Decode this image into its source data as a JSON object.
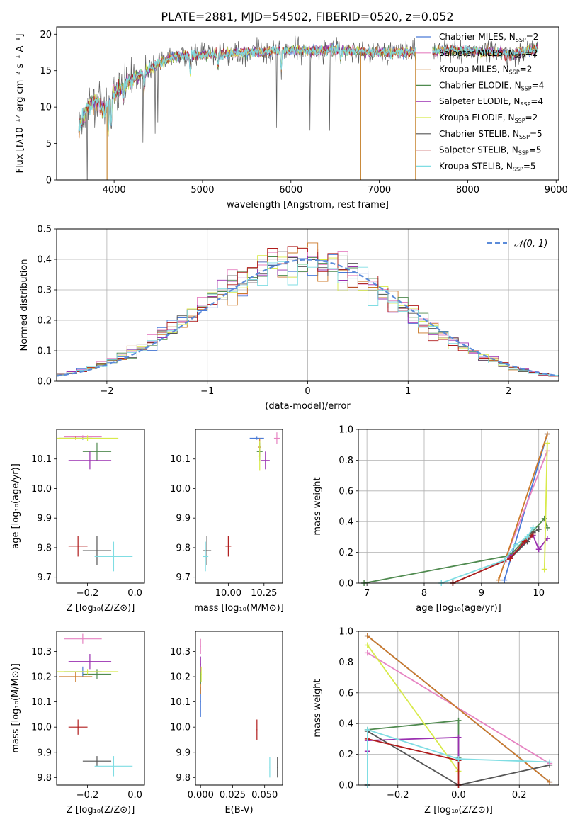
{
  "figure_title": "PLATE=2881, MJD=54502, FIBERID=0520, z=0.052",
  "colors": {
    "Chabrier MILES": "#4a7bd8",
    "Salpeter MILES": "#e683c2",
    "Kroupa MILES": "#cc7a2a",
    "Chabrier ELODIE": "#4f8a4f",
    "Salpeter ELODIE": "#9a2fb0",
    "Kroupa ELODIE": "#d8ea4a",
    "Chabrier STELIB": "#555555",
    "Salpeter STELIB": "#b01c1c",
    "Kroupa STELIB": "#7fdde3",
    "normal": "#5b8bd9"
  },
  "legend": [
    {
      "name": "Chabrier MILES",
      "label": "Chabrier MILES, N",
      "sub": "SSP",
      "tail": "=2"
    },
    {
      "name": "Salpeter MILES",
      "label": "Salpeter MILES, N",
      "sub": "SSP",
      "tail": "=2"
    },
    {
      "name": "Kroupa MILES",
      "label": "Kroupa MILES, N",
      "sub": "SSP",
      "tail": "=2"
    },
    {
      "name": "Chabrier ELODIE",
      "label": "Chabrier ELODIE, N",
      "sub": "SSP",
      "tail": "=4"
    },
    {
      "name": "Salpeter ELODIE",
      "label": "Salpeter ELODIE, N",
      "sub": "SSP",
      "tail": "=4"
    },
    {
      "name": "Kroupa ELODIE",
      "label": "Kroupa ELODIE, N",
      "sub": "SSP",
      "tail": "=2"
    },
    {
      "name": "Chabrier STELIB",
      "label": "Chabrier STELIB, N",
      "sub": "SSP",
      "tail": "=5"
    },
    {
      "name": "Salpeter STELIB",
      "label": "Salpeter STELIB, N",
      "sub": "SSP",
      "tail": "=5"
    },
    {
      "name": "Kroupa STELIB",
      "label": "Kroupa STELIB, N",
      "sub": "SSP",
      "tail": "=5"
    }
  ],
  "chart_data": [
    {
      "id": "spectrum",
      "type": "line",
      "xlabel": "wavelength [Angstrom, rest frame]",
      "ylabel": "Flux [fλ10⁻¹⁷ erg cm⁻² s⁻¹ A⁻¹]",
      "xlim": [
        3350,
        9030
      ],
      "ylim": [
        0,
        21
      ],
      "xticks": [
        4000,
        5000,
        6000,
        7000,
        8000,
        9000
      ],
      "yticks": [
        0,
        5,
        10,
        15,
        20
      ],
      "continuum": [
        [
          3600,
          7
        ],
        [
          3700,
          10
        ],
        [
          3800,
          11
        ],
        [
          3900,
          9.5
        ],
        [
          4000,
          12
        ],
        [
          4100,
          13
        ],
        [
          4300,
          14.5
        ],
        [
          4500,
          16
        ],
        [
          4700,
          17
        ],
        [
          5000,
          17.2
        ],
        [
          5200,
          17.3
        ],
        [
          5500,
          17.5
        ],
        [
          6000,
          17.8
        ],
        [
          6500,
          17.8
        ],
        [
          7000,
          17.5
        ],
        [
          7400,
          17.5
        ],
        [
          7800,
          17.8
        ],
        [
          8200,
          17.6
        ],
        [
          8500,
          17.3
        ],
        [
          8800,
          18
        ]
      ],
      "gaps": [
        [
          7410,
          7600
        ]
      ]
    },
    {
      "id": "residuals",
      "type": "line",
      "xlabel": "(data-model)/error",
      "ylabel": "Normed distribution",
      "xlim": [
        -2.5,
        2.5
      ],
      "ylim": [
        0,
        0.5
      ],
      "xticks": [
        -2,
        -1,
        0,
        1,
        2
      ],
      "yticks": [
        0.0,
        0.1,
        0.2,
        0.3,
        0.4,
        0.5
      ],
      "grid": true,
      "legend": "𝒩(0, 1)",
      "bin_width": 0.1
    },
    {
      "id": "age-vs-Z",
      "type": "scatter",
      "xlabel": "Z [log₁₀(Z/Z⊙)]",
      "ylabel": "age  [log₁₀(age/yr)]",
      "xlim": [
        -0.33,
        0.04
      ],
      "ylim": [
        9.68,
        10.2
      ],
      "xticks": [
        -0.2,
        0.0
      ],
      "yticks": [
        9.7,
        9.8,
        9.9,
        10.0,
        10.1
      ],
      "points": [
        {
          "series": "Chabrier MILES",
          "x": -0.22,
          "y": 10.17,
          "xerr": 0.08,
          "yerr": 0.005
        },
        {
          "series": "Salpeter MILES",
          "x": -0.22,
          "y": 10.175,
          "xerr": 0.08,
          "yerr": 0.005
        },
        {
          "series": "Kroupa MILES",
          "x": -0.25,
          "y": 10.17,
          "xerr": 0.07,
          "yerr": 0.005
        },
        {
          "series": "Chabrier ELODIE",
          "x": -0.16,
          "y": 10.125,
          "xerr": 0.06,
          "yerr": 0.03
        },
        {
          "series": "Salpeter ELODIE",
          "x": -0.19,
          "y": 10.095,
          "xerr": 0.09,
          "yerr": 0.03
        },
        {
          "series": "Kroupa ELODIE",
          "x": -0.2,
          "y": 10.17,
          "xerr": 0.13,
          "yerr": 0.01
        },
        {
          "series": "Chabrier STELIB",
          "x": -0.16,
          "y": 9.79,
          "xerr": 0.06,
          "yerr": 0.05
        },
        {
          "series": "Salpeter STELIB",
          "x": -0.24,
          "y": 9.805,
          "xerr": 0.04,
          "yerr": 0.035
        },
        {
          "series": "Kroupa STELIB",
          "x": -0.09,
          "y": 9.77,
          "xerr": 0.08,
          "yerr": 0.05
        }
      ]
    },
    {
      "id": "age-vs-mass",
      "type": "scatter",
      "xlabel": "mass [log₁₀(M/M⊙)]",
      "ylabel": "",
      "xlim": [
        9.77,
        10.38
      ],
      "ylim": [
        9.68,
        10.2
      ],
      "xticks": [
        10.0,
        10.25
      ],
      "yticks": [
        9.7,
        9.8,
        9.9,
        10.0,
        10.1
      ],
      "points": [
        {
          "series": "Chabrier MILES",
          "x": 10.2,
          "y": 10.17,
          "xerr": 0.05,
          "yerr": 0.005
        },
        {
          "series": "Salpeter MILES",
          "x": 10.34,
          "y": 10.17,
          "xerr": 0.02,
          "yerr": 0.02
        },
        {
          "series": "Kroupa MILES",
          "x": 10.22,
          "y": 10.14,
          "xerr": 0.01,
          "yerr": 0.03
        },
        {
          "series": "Chabrier ELODIE",
          "x": 10.22,
          "y": 10.125,
          "xerr": 0.02,
          "yerr": 0.03
        },
        {
          "series": "Salpeter ELODIE",
          "x": 10.26,
          "y": 10.095,
          "xerr": 0.03,
          "yerr": 0.03
        },
        {
          "series": "Kroupa ELODIE",
          "x": 10.22,
          "y": 10.11,
          "xerr": 0.01,
          "yerr": 0.05
        },
        {
          "series": "Chabrier STELIB",
          "x": 9.85,
          "y": 9.79,
          "xerr": 0.03,
          "yerr": 0.05
        },
        {
          "series": "Salpeter STELIB",
          "x": 10.0,
          "y": 9.805,
          "xerr": 0.02,
          "yerr": 0.035
        },
        {
          "series": "Kroupa STELIB",
          "x": 9.84,
          "y": 9.77,
          "xerr": 0.02,
          "yerr": 0.05
        }
      ]
    },
    {
      "id": "weight-vs-age",
      "type": "line",
      "xlabel": "age  [log₁₀(age/yr)]",
      "ylabel": "mass weight",
      "xlim": [
        6.85,
        10.35
      ],
      "ylim": [
        0,
        1
      ],
      "xticks": [
        7,
        8,
        9,
        10
      ],
      "yticks": [
        0.0,
        0.2,
        0.4,
        0.6,
        0.8,
        1.0
      ],
      "grid": true,
      "series": [
        {
          "name": "Chabrier MILES",
          "x": [
            9.4,
            10.15
          ],
          "y": [
            0.02,
            0.97
          ]
        },
        {
          "name": "Salpeter MILES",
          "x": [
            9.4,
            10.15
          ],
          "y": [
            0.14,
            0.86
          ]
        },
        {
          "name": "Kroupa MILES",
          "x": [
            9.3,
            10.15
          ],
          "y": [
            0.02,
            0.97
          ]
        },
        {
          "name": "Chabrier ELODIE",
          "x": [
            6.95,
            9.5,
            10.1,
            10.15
          ],
          "y": [
            0.0,
            0.18,
            0.42,
            0.36
          ]
        },
        {
          "name": "Salpeter ELODIE",
          "x": [
            9.5,
            9.9,
            10.0,
            10.15
          ],
          "y": [
            0.17,
            0.31,
            0.22,
            0.29
          ]
        },
        {
          "name": "Kroupa ELODIE",
          "x": [
            10.1,
            10.15
          ],
          "y": [
            0.09,
            0.91
          ]
        },
        {
          "name": "Chabrier STELIB",
          "x": [
            8.5,
            9.5,
            9.8,
            9.9,
            10.0
          ],
          "y": [
            0.0,
            0.16,
            0.27,
            0.33,
            0.35
          ]
        },
        {
          "name": "Salpeter STELIB",
          "x": [
            8.5,
            9.5,
            9.75,
            9.85,
            9.9
          ],
          "y": [
            0.0,
            0.16,
            0.27,
            0.3,
            0.32
          ]
        },
        {
          "name": "Kroupa STELIB",
          "x": [
            8.3,
            9.4,
            9.6,
            9.8,
            9.9
          ],
          "y": [
            0.0,
            0.15,
            0.25,
            0.3,
            0.36
          ]
        }
      ]
    },
    {
      "id": "mass-vs-Z",
      "type": "scatter",
      "xlabel": "Z [log₁₀(Z/Z⊙)]",
      "ylabel": "mass [log₁₀(M/M⊙)]",
      "xlim": [
        -0.33,
        0.04
      ],
      "ylim": [
        9.77,
        10.38
      ],
      "xticks": [
        -0.2,
        0.0
      ],
      "yticks": [
        9.8,
        9.9,
        10.0,
        10.1,
        10.2,
        10.3
      ],
      "points": [
        {
          "series": "Chabrier MILES",
          "x": -0.22,
          "y": 10.22,
          "xerr": 0.08,
          "yerr": 0.02
        },
        {
          "series": "Salpeter MILES",
          "x": -0.22,
          "y": 10.35,
          "xerr": 0.08,
          "yerr": 0.02
        },
        {
          "series": "Kroupa MILES",
          "x": -0.25,
          "y": 10.2,
          "xerr": 0.07,
          "yerr": 0.02
        },
        {
          "series": "Chabrier ELODIE",
          "x": -0.16,
          "y": 10.21,
          "xerr": 0.06,
          "yerr": 0.02
        },
        {
          "series": "Salpeter ELODIE",
          "x": -0.19,
          "y": 10.26,
          "xerr": 0.09,
          "yerr": 0.03
        },
        {
          "series": "Kroupa ELODIE",
          "x": -0.2,
          "y": 10.22,
          "xerr": 0.13,
          "yerr": 0.01
        },
        {
          "series": "Chabrier STELIB",
          "x": -0.16,
          "y": 9.865,
          "xerr": 0.06,
          "yerr": 0.02
        },
        {
          "series": "Salpeter STELIB",
          "x": -0.24,
          "y": 10.0,
          "xerr": 0.04,
          "yerr": 0.03
        },
        {
          "series": "Kroupa STELIB",
          "x": -0.09,
          "y": 9.845,
          "xerr": 0.08,
          "yerr": 0.04
        }
      ]
    },
    {
      "id": "mass-vs-ebv",
      "type": "scatter",
      "xlabel": "E(B-V)",
      "ylabel": "",
      "xlim": [
        -0.004,
        0.064
      ],
      "ylim": [
        9.77,
        10.38
      ],
      "xticks": [
        0.0,
        0.025,
        0.05
      ],
      "yticks": [
        9.8,
        9.9,
        10.0,
        10.1,
        10.2,
        10.3
      ],
      "points": [
        {
          "series": "Chabrier MILES",
          "x": 0.0,
          "y": 10.1,
          "xerr": 0.0003,
          "yerr": 0.06
        },
        {
          "series": "Salpeter MILES",
          "x": 0.0,
          "y": 10.32,
          "xerr": 0.0003,
          "yerr": 0.03
        },
        {
          "series": "Kroupa MILES",
          "x": 0.0,
          "y": 10.17,
          "xerr": 0.0003,
          "yerr": 0.04
        },
        {
          "series": "Chabrier ELODIE",
          "x": 0.0,
          "y": 10.2,
          "xerr": 0.0003,
          "yerr": 0.03
        },
        {
          "series": "Salpeter ELODIE",
          "x": 0.0,
          "y": 10.25,
          "xerr": 0.0003,
          "yerr": 0.03
        },
        {
          "series": "Kroupa ELODIE",
          "x": 0.0005,
          "y": 10.21,
          "xerr": 0.0003,
          "yerr": 0.03
        },
        {
          "series": "Chabrier STELIB",
          "x": 0.06,
          "y": 9.84,
          "xerr": 0.0003,
          "yerr": 0.04
        },
        {
          "series": "Salpeter STELIB",
          "x": 0.044,
          "y": 9.99,
          "xerr": 0.0003,
          "yerr": 0.04
        },
        {
          "series": "Kroupa STELIB",
          "x": 0.054,
          "y": 9.84,
          "xerr": 0.0003,
          "yerr": 0.04
        }
      ]
    },
    {
      "id": "weight-vs-Z",
      "type": "line",
      "xlabel": "Z [log₁₀(Z/Z⊙)]",
      "ylabel": "mass weight",
      "xlim": [
        -0.33,
        0.33
      ],
      "ylim": [
        0,
        1
      ],
      "xticks": [
        -0.2,
        0.0,
        0.2
      ],
      "yticks": [
        0.0,
        0.2,
        0.4,
        0.6,
        0.8,
        1.0
      ],
      "grid": true,
      "series": [
        {
          "name": "Chabrier MILES",
          "x": [
            -0.3,
            0.3
          ],
          "y": [
            0.97,
            0.02
          ]
        },
        {
          "name": "Salpeter MILES",
          "x": [
            -0.3,
            0.3
          ],
          "y": [
            0.86,
            0.14
          ]
        },
        {
          "name": "Kroupa MILES",
          "x": [
            -0.3,
            0.3
          ],
          "y": [
            0.97,
            0.02
          ]
        },
        {
          "name": "Chabrier ELODIE",
          "x": [
            -0.3,
            -0.3,
            0.0,
            0.0
          ],
          "y": [
            0.0,
            0.36,
            0.42,
            0.18
          ]
        },
        {
          "name": "Salpeter ELODIE",
          "x": [
            -0.3,
            -0.3,
            0.0,
            0.0
          ],
          "y": [
            0.22,
            0.29,
            0.31,
            0.17
          ]
        },
        {
          "name": "Kroupa ELODIE",
          "x": [
            -0.3,
            0.0
          ],
          "y": [
            0.91,
            0.09
          ]
        },
        {
          "name": "Chabrier STELIB",
          "x": [
            -0.3,
            -0.3,
            0.0,
            0.3
          ],
          "y": [
            0.0,
            0.35,
            0.0,
            0.13
          ]
        },
        {
          "name": "Salpeter STELIB",
          "x": [
            -0.3,
            -0.3,
            0.0,
            0.0
          ],
          "y": [
            0.0,
            0.3,
            0.16,
            0.0
          ]
        },
        {
          "name": "Kroupa STELIB",
          "x": [
            -0.3,
            -0.3,
            0.0,
            0.3
          ],
          "y": [
            0.0,
            0.36,
            0.17,
            0.15
          ]
        }
      ]
    }
  ]
}
